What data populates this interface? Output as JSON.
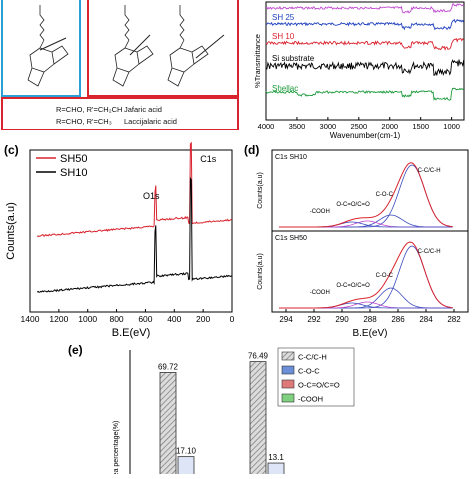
{
  "panel_a": {
    "legend_line1": "R=CHO, R'=CH₂CH",
    "legend_name1": "Jafaric acid",
    "legend_line2": "R=CHO, R'=CH₃",
    "legend_name2": "Laccijalaric acid",
    "colors": {
      "box_blue": "#2a9fd6",
      "box_red": "#d9232e"
    }
  },
  "chart_data": [
    {
      "panel": "b",
      "type": "line",
      "xlabel": "Wavenumber(cm-1)",
      "ylabel": "%Transmittance",
      "xlim": [
        4000,
        800
      ],
      "x_ticks": [
        4000,
        3500,
        3000,
        2500,
        2000,
        1500,
        1000
      ],
      "series": [
        {
          "name": "SH 25",
          "color": "#1f3fbf"
        },
        {
          "name": "SH 10",
          "color": "#d9232e"
        },
        {
          "name": "Si substrate",
          "color": "#000000"
        },
        {
          "name": "Shellac",
          "color": "#1a9a3a"
        }
      ],
      "top_trace_color": "#c04ad0"
    },
    {
      "panel": "c",
      "type": "line",
      "xlabel": "B.E(eV)",
      "ylabel": "Counts(a.u)",
      "xlim": [
        1400,
        0
      ],
      "x_ticks": [
        1400,
        1200,
        1000,
        800,
        600,
        400,
        200,
        0
      ],
      "annotations": [
        "O1s",
        "C1s"
      ],
      "series": [
        {
          "name": "SH50",
          "color": "#d9232e"
        },
        {
          "name": "SH10",
          "color": "#000000"
        }
      ]
    },
    {
      "panel": "d",
      "type": "line",
      "xlabel": "B.E(eV)",
      "ylabel": "Counts(a.u)",
      "xlim": [
        295,
        281
      ],
      "x_ticks": [
        294,
        292,
        290,
        288,
        286,
        284,
        282
      ],
      "subplots": [
        {
          "title": "C1s  SH10",
          "peaks": [
            "C-C/C-H",
            "C-O-C",
            "O-C=O/C=O",
            "-COOH"
          ]
        },
        {
          "title": "C1s  SH50",
          "peaks": [
            "C-C/C-H",
            "C-O-C",
            "O-C=O/C=O",
            "-COOH"
          ]
        }
      ]
    },
    {
      "panel": "e",
      "type": "bar",
      "ylabel": "Area percentage(%)",
      "legend": [
        "C-C/C-H",
        "C-O-C",
        "O-C=O/C=O",
        "-COOH"
      ],
      "legend_colors": [
        "#888888",
        "#6a8fd8",
        "#e07a7a",
        "#7fd07f"
      ],
      "bars": [
        {
          "label": "69.72",
          "value": 69.72,
          "series": "C-C/C-H",
          "group": 0
        },
        {
          "label": "17.10",
          "value": 17.1,
          "series": "C-O-C",
          "group": 0
        },
        {
          "label": "76.49",
          "value": 76.49,
          "series": "C-C/C-H",
          "group": 1
        },
        {
          "label": "13.1",
          "value": 13.1,
          "series": "C-O-C",
          "group": 1
        }
      ]
    }
  ],
  "panel_labels": {
    "c": "(c)",
    "d": "(d)",
    "e": "(e)"
  }
}
